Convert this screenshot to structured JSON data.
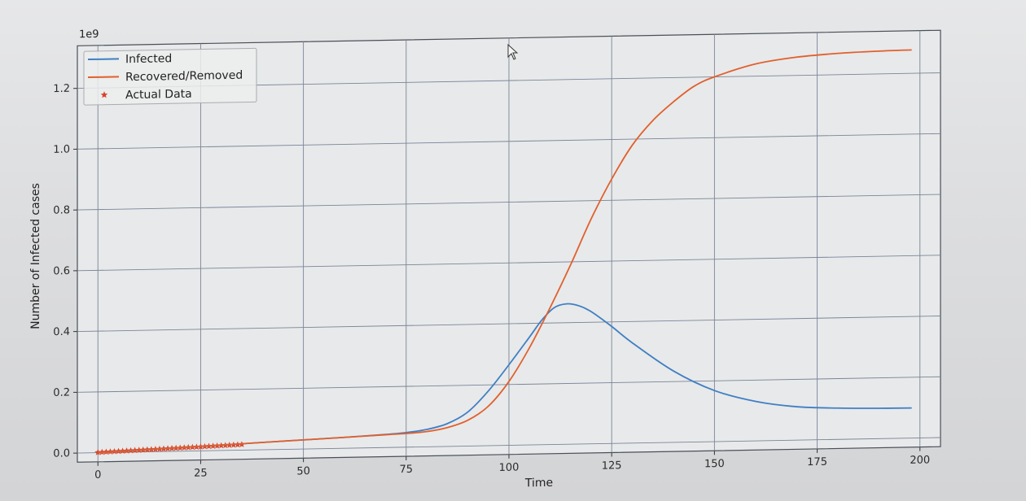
{
  "chart_data": {
    "type": "line",
    "title": "",
    "xlabel": "Time",
    "ylabel": "Number of Infected cases",
    "y_scale_label": "1e9",
    "xlim": [
      -5,
      205
    ],
    "ylim": [
      -0.03,
      1.34
    ],
    "x_ticks": [
      0,
      25,
      50,
      75,
      100,
      125,
      150,
      175,
      200
    ],
    "x_tick_labels": [
      "0",
      "25",
      "50",
      "75",
      "100",
      "125",
      "150",
      "175",
      "200"
    ],
    "y_ticks": [
      0.0,
      0.2,
      0.4,
      0.6,
      0.8,
      1.0,
      1.2
    ],
    "y_tick_labels": [
      "0.0",
      "0.2",
      "0.4",
      "0.6",
      "0.8",
      "1.0",
      "1.2"
    ],
    "grid": true,
    "legend_position": "top-left",
    "series": [
      {
        "name": "Infected",
        "color": "#3f7fc4",
        "marker": "line",
        "x": [
          0,
          10,
          20,
          30,
          40,
          50,
          60,
          70,
          75,
          80,
          85,
          90,
          95,
          100,
          105,
          108,
          111,
          114,
          117,
          120,
          125,
          130,
          140,
          150,
          160,
          170,
          180,
          190,
          198
        ],
        "y": [
          0.0,
          0.006,
          0.012,
          0.018,
          0.024,
          0.03,
          0.036,
          0.043,
          0.048,
          0.057,
          0.075,
          0.112,
          0.18,
          0.265,
          0.355,
          0.41,
          0.45,
          0.462,
          0.455,
          0.435,
          0.385,
          0.33,
          0.235,
          0.168,
          0.13,
          0.11,
          0.103,
          0.1,
          0.099
        ]
      },
      {
        "name": "Recovered/Removed",
        "color": "#e0602d",
        "marker": "line",
        "x": [
          0,
          10,
          20,
          30,
          40,
          50,
          60,
          70,
          75,
          80,
          85,
          90,
          95,
          100,
          105,
          110,
          115,
          120,
          125,
          130,
          135,
          140,
          145,
          150,
          160,
          170,
          180,
          190,
          198
        ],
        "y": [
          0.0,
          0.006,
          0.012,
          0.018,
          0.024,
          0.03,
          0.036,
          0.042,
          0.045,
          0.05,
          0.062,
          0.085,
          0.13,
          0.21,
          0.32,
          0.45,
          0.59,
          0.74,
          0.87,
          0.98,
          1.06,
          1.12,
          1.17,
          1.2,
          1.24,
          1.26,
          1.27,
          1.275,
          1.277
        ]
      },
      {
        "name": "Actual Data",
        "color": "#d8442a",
        "marker": "star",
        "x": [
          0,
          1,
          2,
          3,
          4,
          5,
          6,
          7,
          8,
          9,
          10,
          11,
          12,
          13,
          14,
          15,
          16,
          17,
          18,
          19,
          20,
          21,
          22,
          23,
          24,
          25,
          26,
          27,
          28,
          29,
          30,
          31,
          32,
          33,
          34,
          35
        ],
        "y": [
          0.001,
          0.0015,
          0.002,
          0.0025,
          0.003,
          0.0035,
          0.004,
          0.0045,
          0.005,
          0.0055,
          0.006,
          0.0065,
          0.007,
          0.0075,
          0.008,
          0.0085,
          0.009,
          0.0095,
          0.01,
          0.0105,
          0.011,
          0.0115,
          0.012,
          0.0125,
          0.013,
          0.0135,
          0.014,
          0.0145,
          0.015,
          0.0155,
          0.016,
          0.0165,
          0.017,
          0.0175,
          0.018,
          0.0185
        ]
      }
    ]
  }
}
